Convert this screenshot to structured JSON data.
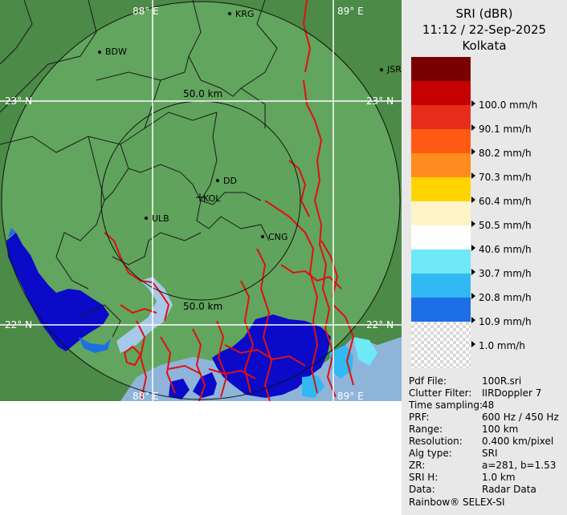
{
  "map": {
    "lon_labels": [
      "88° E",
      "89° E",
      "88° E",
      "89° E"
    ],
    "lat_labels": [
      "23° N",
      "23° N",
      "22° N",
      "22° N"
    ],
    "range_labels": [
      "50.0 km",
      "50.0 km"
    ],
    "places": [
      "KRG",
      "BDW",
      "JSR",
      "DD",
      "KOL",
      "ULB",
      "CNG"
    ]
  },
  "panel": {
    "title": "SRI (dBR)",
    "datetime": "11:12 / 22-Sep-2025",
    "station": "Kolkata",
    "legend": [
      {
        "color": "#7a0000",
        "label": ""
      },
      {
        "color": "#c40000",
        "label": "100.0 mm/h"
      },
      {
        "color": "#e62d1c",
        "label": "90.1 mm/h"
      },
      {
        "color": "#ff5a14",
        "label": "80.2 mm/h"
      },
      {
        "color": "#ff8c1e",
        "label": "70.3 mm/h"
      },
      {
        "color": "#ffd400",
        "label": "60.4 mm/h"
      },
      {
        "color": "#fdf5c8",
        "label": "50.5 mm/h"
      },
      {
        "color": "#ffffff",
        "label": "40.6 mm/h"
      },
      {
        "color": "#6fe8f7",
        "label": "30.7 mm/h"
      },
      {
        "color": "#32b8f2",
        "label": "20.8 mm/h"
      },
      {
        "color": "#1e6ee6",
        "label": "10.9 mm/h"
      },
      {
        "color": "#0a0ac8",
        "label": "1.0 mm/h"
      }
    ],
    "meta": [
      {
        "key": "Pdf File:",
        "value": "100R.sri"
      },
      {
        "key": "Clutter Filter:",
        "value": "IIRDoppler 7"
      },
      {
        "key": "Time sampling:",
        "value": "48"
      },
      {
        "key": "PRF:",
        "value": "600 Hz / 450 Hz"
      },
      {
        "key": "Range:",
        "value": "100 km"
      },
      {
        "key": "Resolution:",
        "value": "0.400 km/pixel"
      },
      {
        "key": "Alg type:",
        "value": "SRI"
      },
      {
        "key": "ZR:",
        "value": "a=281, b=1.53"
      },
      {
        "key": "SRI H:",
        "value": "1.0 km"
      },
      {
        "key": "Data:",
        "value": "Radar Data"
      }
    ],
    "footer": "Rainbow® SELEX-SI"
  }
}
